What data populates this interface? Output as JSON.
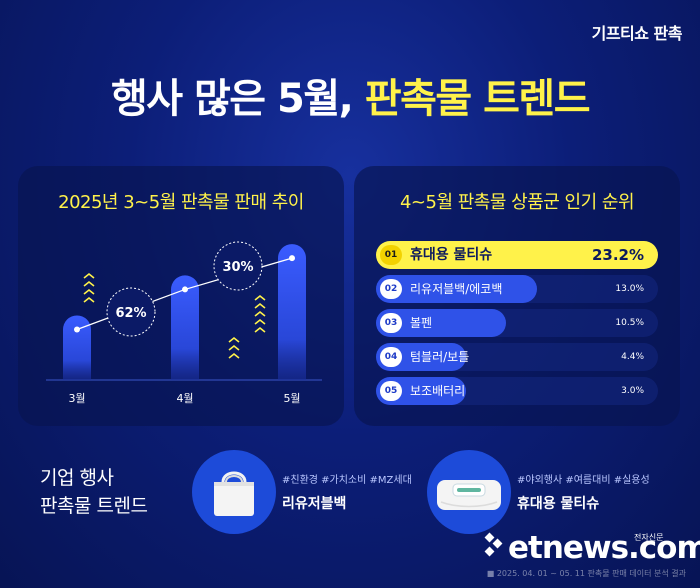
{
  "brand_top": "기프티쇼 판촉",
  "headline": {
    "part_a": "행사 많은 5월,",
    "part_b": "판촉물 트렌드"
  },
  "left_panel": {
    "title": "2025년 3~5월 판촉물 판매 추이"
  },
  "right_panel": {
    "title": "4~5월 판촉물 상품군 인기 순위"
  },
  "chart_data": [
    {
      "type": "bar",
      "title": "2025년 3~5월 판촉물 판매 추이",
      "categories": [
        "3월",
        "4월",
        "5월"
      ],
      "values": [
        1.0,
        1.62,
        2.106
      ],
      "growth_labels": [
        "62%",
        "30%"
      ],
      "ylim": [
        0,
        2.2
      ]
    },
    {
      "type": "bar",
      "title": "4~5월 판촉물 상품군 인기 순위",
      "categories": [
        "휴대용 물티슈",
        "리유저블백/에코백",
        "볼펜",
        "텀블러/보틀",
        "보조배터리"
      ],
      "values": [
        23.2,
        13.0,
        10.5,
        4.4,
        3.0
      ],
      "value_labels": [
        "23.2%",
        "13.0%",
        "10.5%",
        "4.4%",
        "3.0%"
      ],
      "ranks": [
        "01",
        "02",
        "03",
        "04",
        "05"
      ]
    }
  ],
  "bottom": {
    "title_line1": "기업 행사",
    "title_line2": "판촉물 트렌드",
    "products": [
      {
        "tags": "#친환경 #가치소비 #MZ세대",
        "name": "리유저블백",
        "icon": "tote-bag-icon"
      },
      {
        "tags": "#야외행사 #여름대비 #실용성",
        "name": "휴대용 물티슈",
        "icon": "wet-wipes-icon"
      }
    ]
  },
  "logo": {
    "text": "etnews.com",
    "sub": "전자신문"
  },
  "source_note": "■ 2025. 04. 01 ~ 05. 11 판촉물 판매 데이터 분석 결과",
  "colors": {
    "accent_yellow": "#fff24a",
    "bar_blue": "#2f52e8",
    "background_top": "#17309e",
    "background_bottom": "#071455"
  }
}
